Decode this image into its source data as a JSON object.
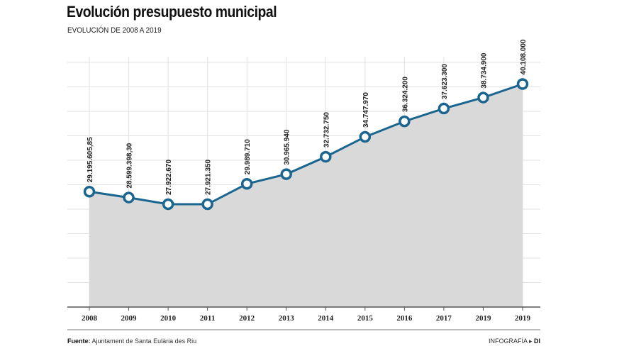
{
  "chart_data": {
    "type": "area",
    "title": "Evolución presupuesto municipal",
    "subtitle": "EVOLUCIÓN DE 2008 A 2019",
    "categories": [
      "2008",
      "2009",
      "2010",
      "2011",
      "2012",
      "2013",
      "2014",
      "2015",
      "2016",
      "2017",
      "2019",
      "2019"
    ],
    "values": [
      29195605.85,
      28599398.3,
      27922670,
      27921350,
      29989710,
      30965940,
      32732750,
      34747970,
      36324200,
      37623300,
      38734900,
      40108000
    ],
    "data_labels": [
      "29.195.605,85",
      "28.599.398,30",
      "27.922.670",
      "27.921.350",
      "29.989.710",
      "30.965.940",
      "32.732.750",
      "34.747.970",
      "36.324.200",
      "37.623.300",
      "38.734.900",
      "40.108.000"
    ],
    "ylim": [
      17500000,
      42300000
    ],
    "grid": true,
    "xlabel": "",
    "ylabel": "",
    "colors": {
      "line": "#1b6690",
      "fill": "#d9d9d9",
      "grid": "#e2e2e2"
    }
  },
  "footer": {
    "source_label": "Fuente:",
    "source_text": " Ajuntament de Santa Eulària des Riu",
    "credit_label": "INFOGRAFÍA ▸ ",
    "credit_brand": "DI"
  }
}
